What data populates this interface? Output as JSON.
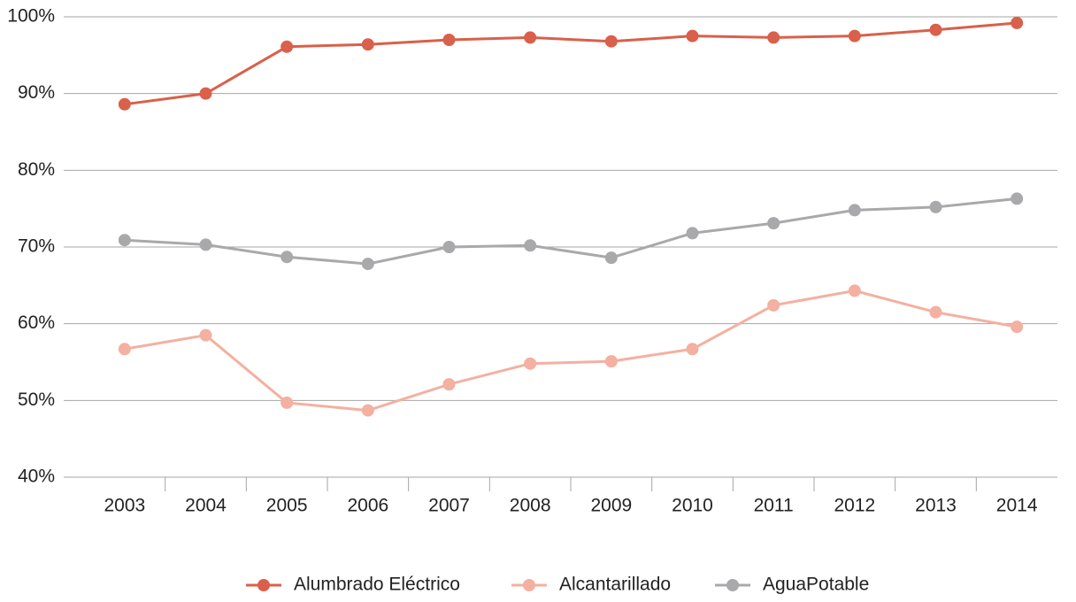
{
  "chart_data": {
    "type": "line",
    "categories": [
      "2003",
      "2004",
      "2005",
      "2006",
      "2007",
      "2008",
      "2009",
      "2010",
      "2011",
      "2012",
      "2013",
      "2014"
    ],
    "series": [
      {
        "name": "Alumbrado Eléctrico",
        "color": "#d9604a",
        "values": [
          88.6,
          90.0,
          96.1,
          96.4,
          97.0,
          97.3,
          96.8,
          97.5,
          97.3,
          97.5,
          98.3,
          99.2
        ]
      },
      {
        "name": "Alcantarillado",
        "color": "#f4b0a0",
        "values": [
          56.7,
          58.5,
          49.7,
          48.7,
          52.1,
          54.8,
          55.1,
          56.7,
          62.4,
          64.3,
          61.5,
          59.6
        ]
      },
      {
        "name": "AguaPotable",
        "color": "#a9a9ab",
        "values": [
          70.9,
          70.3,
          68.7,
          67.8,
          70.0,
          70.2,
          68.6,
          71.8,
          73.1,
          74.8,
          75.2,
          76.3
        ]
      }
    ],
    "ylim": [
      40,
      100
    ],
    "yticks": [
      {
        "value": 40,
        "label": "40%"
      },
      {
        "value": 50,
        "label": "50%"
      },
      {
        "value": 60,
        "label": "60%"
      },
      {
        "value": 70,
        "label": "70%"
      },
      {
        "value": 80,
        "label": "80%"
      },
      {
        "value": 90,
        "label": "90%"
      },
      {
        "value": 100,
        "label": "100%"
      }
    ],
    "grid": true,
    "legend": "bottom"
  }
}
